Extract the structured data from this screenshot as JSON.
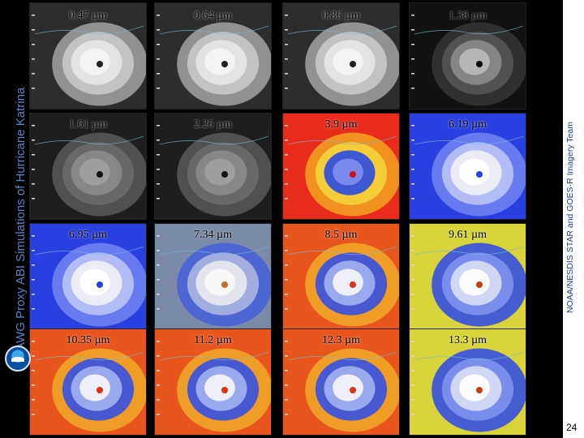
{
  "title": "AWG Proxy ABI Simulations of Hurricane Katrina",
  "credit": "NOAA/NESDIS STAR and GOES-R Imagery Team",
  "page_number": "24",
  "panels": [
    {
      "label": "0.47 µm",
      "scheme": "vis"
    },
    {
      "label": "0.64 µm",
      "scheme": "vis"
    },
    {
      "label": "0.86 µm",
      "scheme": "vis"
    },
    {
      "label": "1.38 µm",
      "scheme": "dark"
    },
    {
      "label": "1.61 µm",
      "scheme": "vis2"
    },
    {
      "label": "2.26 µm",
      "scheme": "vis2"
    },
    {
      "label": "3.9 µm",
      "scheme": "hot"
    },
    {
      "label": "6.19 µm",
      "scheme": "wv"
    },
    {
      "label": "6.95 µm",
      "scheme": "wv"
    },
    {
      "label": "7.34 µm",
      "scheme": "wvgray"
    },
    {
      "label": "8.5 µm",
      "scheme": "ir"
    },
    {
      "label": "9.61 µm",
      "scheme": "irwarm"
    },
    {
      "label": "10.35 µm",
      "scheme": "ir"
    },
    {
      "label": "11.2 µm",
      "scheme": "ir"
    },
    {
      "label": "12.3 µm",
      "scheme": "ir"
    },
    {
      "label": "13.3 µm",
      "scheme": "irwarm"
    }
  ]
}
